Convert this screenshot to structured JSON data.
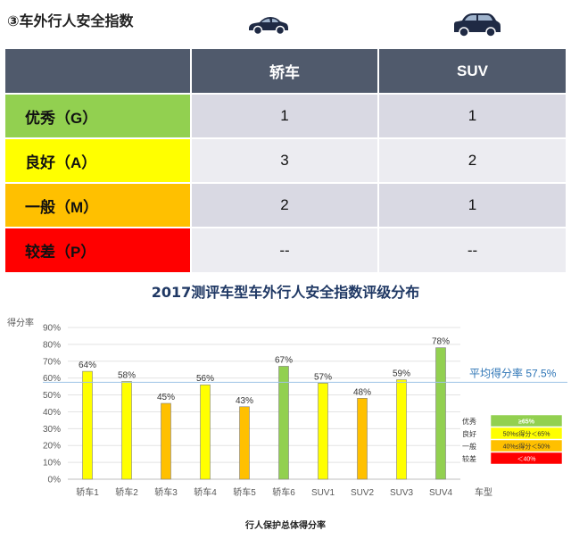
{
  "section_title": "③车外行人安全指数",
  "colors": {
    "good": "#92d050",
    "acceptable": "#ffff00",
    "marginal": "#ffc000",
    "poor": "#ff0000",
    "header_bg": "#505a6c",
    "avg_line": "#9dc3e6"
  },
  "table": {
    "columns": [
      "",
      "轿车",
      "SUV"
    ],
    "rows": [
      {
        "grade": "优秀（G）",
        "color": "#92d050",
        "sedan": "1",
        "suv": "1"
      },
      {
        "grade": "良好（A）",
        "color": "#ffff00",
        "sedan": "3",
        "suv": "2"
      },
      {
        "grade": "一般（M）",
        "color": "#ffc000",
        "sedan": "2",
        "suv": "1"
      },
      {
        "grade": "较差（P）",
        "color": "#ff0000",
        "sedan": "--",
        "suv": "--"
      }
    ]
  },
  "chart_data": {
    "type": "bar",
    "title": "2017测评车型车外行人安全指数评级分布",
    "ylabel": "得分率",
    "xlabel": "车型",
    "bottom_title": "行人保护总体得分率",
    "ylim": [
      0,
      90
    ],
    "yticks": [
      "0%",
      "10%",
      "20%",
      "30%",
      "40%",
      "50%",
      "60%",
      "70%",
      "80%",
      "90%"
    ],
    "categories": [
      "轿车1",
      "轿车2",
      "轿车3",
      "轿车4",
      "轿车5",
      "轿车6",
      "SUV1",
      "SUV2",
      "SUV3",
      "SUV4"
    ],
    "values": [
      64,
      58,
      45,
      56,
      43,
      67,
      57,
      48,
      59,
      78
    ],
    "value_labels": [
      "64%",
      "58%",
      "45%",
      "56%",
      "43%",
      "67%",
      "57%",
      "48%",
      "59%",
      "78%"
    ],
    "bar_grades": [
      "acceptable",
      "acceptable",
      "marginal",
      "acceptable",
      "marginal",
      "good",
      "acceptable",
      "marginal",
      "acceptable",
      "good"
    ],
    "average": 57.5,
    "average_label": "平均得分率 57.5%",
    "legend": [
      {
        "name": "优秀",
        "range": "≥65%",
        "grade": "good"
      },
      {
        "name": "良好",
        "range": "50%≤得分＜65%",
        "grade": "acceptable"
      },
      {
        "name": "一般",
        "range": "40%≤得分＜50%",
        "grade": "marginal"
      },
      {
        "name": "较差",
        "range": "＜40%",
        "grade": "poor"
      }
    ],
    "grid": true
  }
}
